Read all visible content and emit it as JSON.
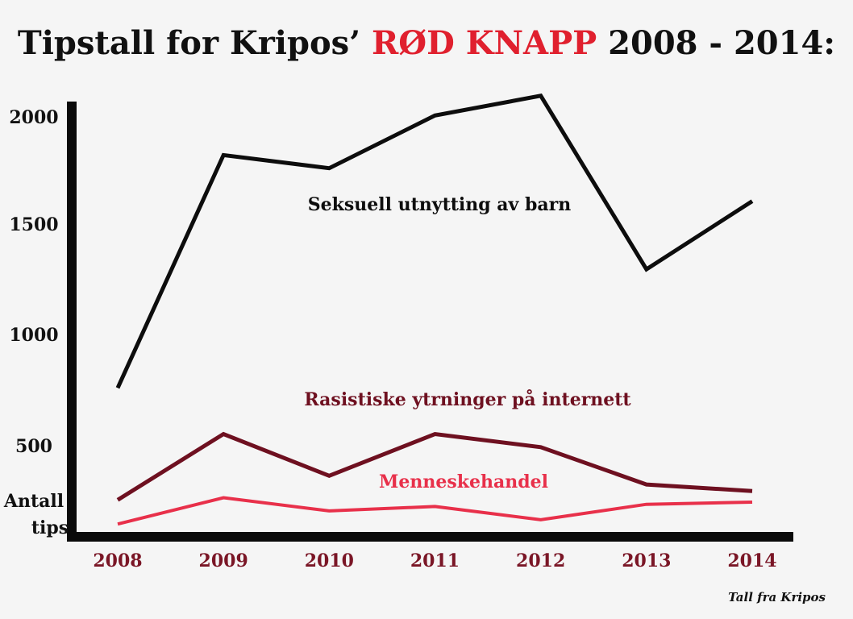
{
  "title": {
    "part1": "Tipstall for Kripos’ ",
    "highlight": "RØD KNAPP",
    "part2": " 2008 - 2014:"
  },
  "source_note": "Tall fra Kripos",
  "colors": {
    "highlight": "#e0202e",
    "axis": "#0a0a0a",
    "xtick": "#7a1626"
  },
  "chart_data": {
    "type": "line",
    "x": [
      "2008",
      "2009",
      "2010",
      "2011",
      "2012",
      "2013",
      "2014"
    ],
    "ylabel": [
      "Antall",
      "tips"
    ],
    "yticks": [
      500,
      1000,
      1500,
      2000
    ],
    "ylim": [
      0,
      2050
    ],
    "grid": false,
    "series": [
      {
        "name": "Seksuell utnytting av barn",
        "color": "#0d0d0d",
        "values": [
          700,
          1760,
          1700,
          1940,
          2030,
          1240,
          1550
        ]
      },
      {
        "name": "Rasistiske ytrninger på internett",
        "color": "#6e1020",
        "values": [
          190,
          490,
          300,
          490,
          430,
          260,
          230
        ]
      },
      {
        "name": "Menneskehandel",
        "color": "#e8304a",
        "values": [
          80,
          200,
          140,
          160,
          100,
          170,
          180
        ]
      }
    ]
  }
}
